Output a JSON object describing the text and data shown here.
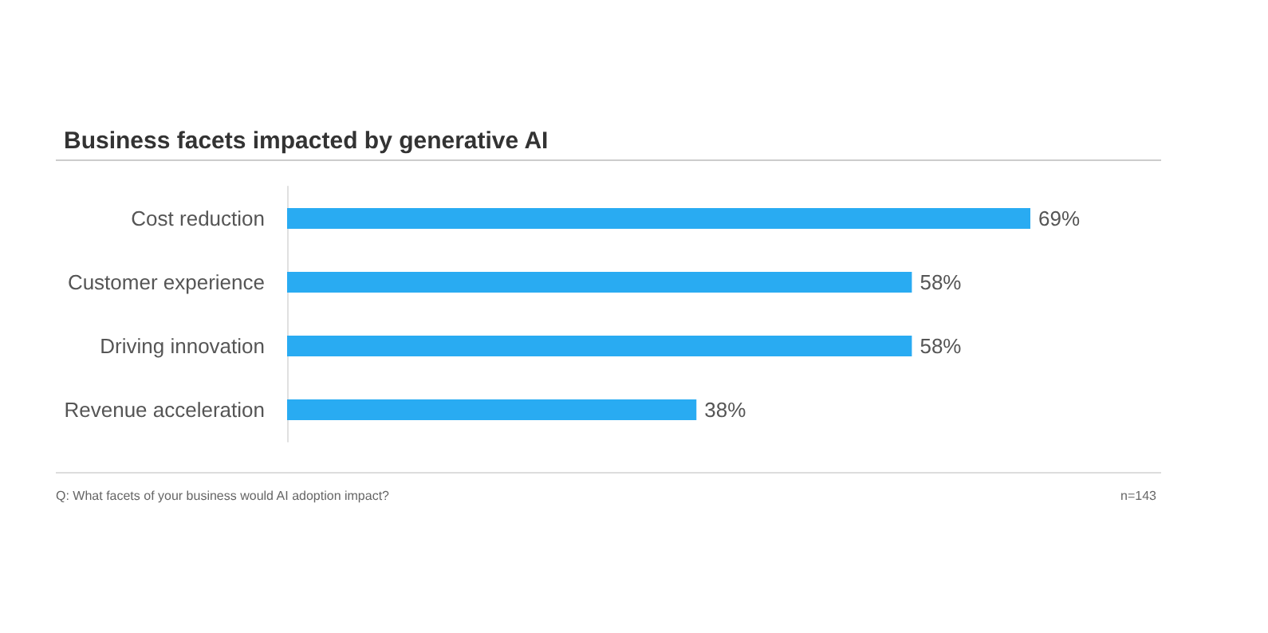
{
  "chart_data": {
    "type": "bar",
    "orientation": "horizontal",
    "title": "Business facets impacted by generative AI",
    "categories": [
      "Cost reduction",
      "Customer experience",
      "Driving innovation",
      "Revenue acceleration"
    ],
    "values": [
      69,
      58,
      58,
      38
    ],
    "color": "#29abf2",
    "value_labels": [
      "69%",
      "58%",
      "58%",
      "38%"
    ],
    "annotations": [
      "Q: What facets of your business would AI adoption impact?",
      "n=143"
    ]
  }
}
